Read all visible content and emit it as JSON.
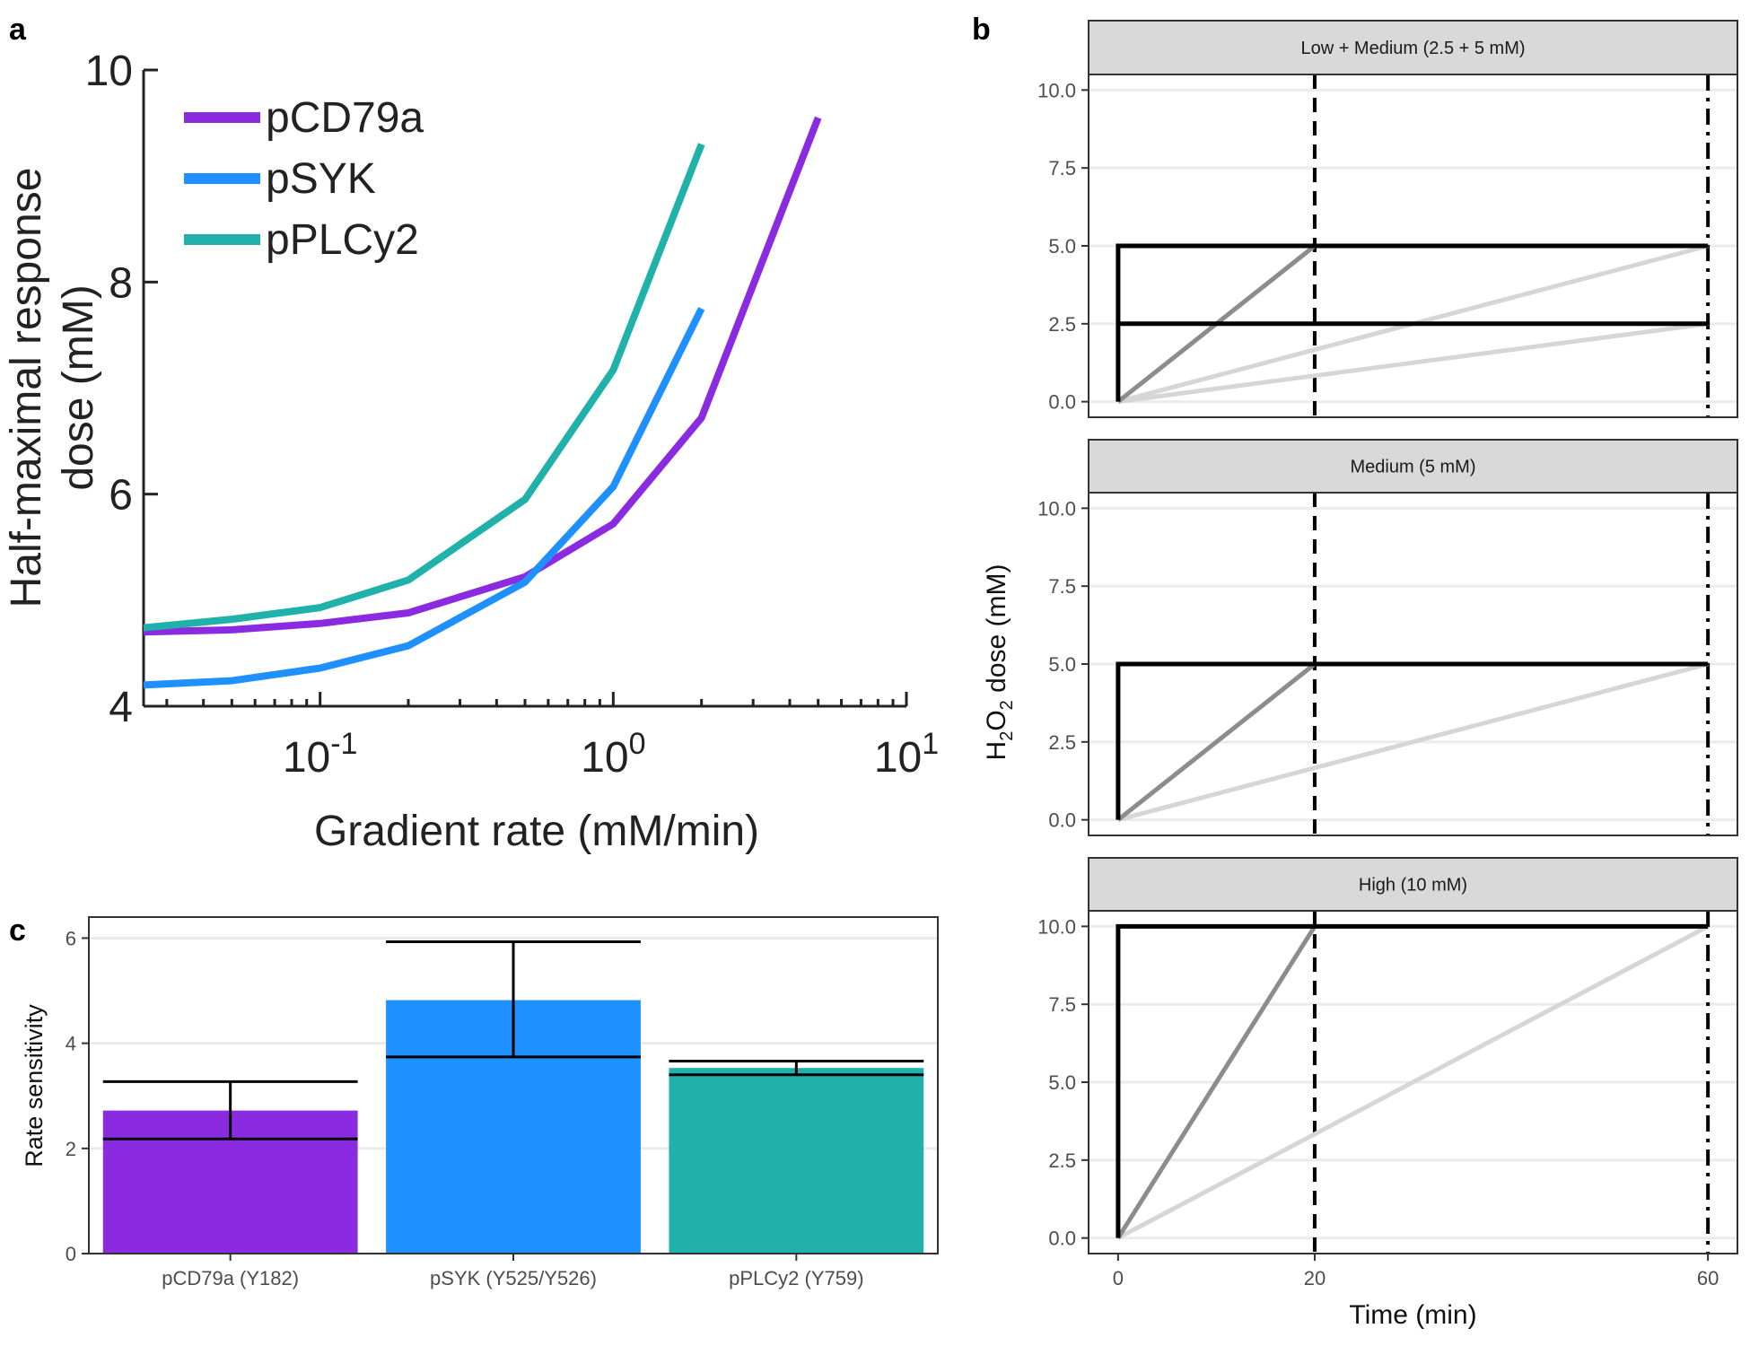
{
  "panel_labels": {
    "a": "a",
    "b": "b",
    "c": "c"
  },
  "colors": {
    "pCD79a": "#8a2be2",
    "pSYK": "#1e90ff",
    "pPLCy2": "#20b2aa",
    "step": "#000000",
    "ramp20": "#8c8c8c",
    "ramp60": "#d6d6d6",
    "strip": "#d9d9d9",
    "grid": "#ebebeb"
  },
  "chart_data": [
    {
      "type": "line",
      "panel": "a",
      "xscale": "log",
      "xlabel": "Gradient rate (mM/min)",
      "ylabel_lines": [
        "Half-maximal response",
        "dose (mM)"
      ],
      "xlim": [
        0.025,
        10
      ],
      "ylim": [
        4,
        10
      ],
      "yticks": [
        4,
        6,
        8,
        10
      ],
      "xtick_labels": [
        {
          "value": 0.1,
          "base": "10",
          "exp": "-1"
        },
        {
          "value": 1,
          "base": "10",
          "exp": "0"
        },
        {
          "value": 10,
          "base": "10",
          "exp": "1"
        }
      ],
      "legend_position": "top-left",
      "series": [
        {
          "name": "pCD79a",
          "color_key": "pCD79a",
          "x": [
            0.025,
            0.05,
            0.1,
            0.2,
            0.5,
            1,
            2,
            5
          ],
          "y": [
            4.7,
            4.72,
            4.78,
            4.88,
            5.22,
            5.72,
            6.72,
            9.55
          ]
        },
        {
          "name": "pSYK",
          "color_key": "pSYK",
          "x": [
            0.025,
            0.05,
            0.1,
            0.2,
            0.5,
            1,
            2
          ],
          "y": [
            4.2,
            4.24,
            4.36,
            4.57,
            5.17,
            6.07,
            7.75
          ]
        },
        {
          "name": "pPLCy2",
          "color_key": "pPLCy2",
          "x": [
            0.025,
            0.05,
            0.1,
            0.2,
            0.5,
            1,
            2
          ],
          "y": [
            4.74,
            4.82,
            4.93,
            5.19,
            5.95,
            7.17,
            9.3
          ]
        }
      ]
    },
    {
      "type": "line",
      "panel": "b",
      "xlabel": "Time (min)",
      "ylabel_parts": [
        "H",
        "2",
        "O",
        "2",
        " dose (mM)"
      ],
      "xlim": [
        -3,
        63
      ],
      "ylim": [
        -0.5,
        10.5
      ],
      "xticks": [
        0,
        20,
        60
      ],
      "yticks": [
        0,
        2.5,
        5,
        7.5,
        10
      ],
      "ytick_labels": [
        "0.0",
        "2.5",
        "5.0",
        "7.5",
        "10.0"
      ],
      "vlines": [
        {
          "x": 20,
          "style": "dashed"
        },
        {
          "x": 60,
          "style": "dotdash"
        }
      ],
      "facets": [
        {
          "strip": "Low + Medium (2.5 + 5 mM)",
          "series": [
            {
              "style": "ramp60",
              "x": [
                0,
                60
              ],
              "y": [
                0,
                2.5
              ]
            },
            {
              "style": "ramp60",
              "x": [
                0,
                60
              ],
              "y": [
                0,
                5
              ]
            },
            {
              "style": "ramp20",
              "x": [
                0,
                20
              ],
              "y": [
                0,
                5
              ]
            },
            {
              "style": "step",
              "x": [
                0,
                0,
                60
              ],
              "y": [
                0,
                5,
                5
              ]
            },
            {
              "style": "step",
              "x": [
                0,
                60
              ],
              "y": [
                2.5,
                2.5
              ]
            }
          ]
        },
        {
          "strip": "Medium (5 mM)",
          "series": [
            {
              "style": "ramp60",
              "x": [
                0,
                60
              ],
              "y": [
                0,
                5
              ]
            },
            {
              "style": "ramp20",
              "x": [
                0,
                20
              ],
              "y": [
                0,
                5
              ]
            },
            {
              "style": "step",
              "x": [
                0,
                0,
                60
              ],
              "y": [
                0,
                5,
                5
              ]
            }
          ]
        },
        {
          "strip": "High (10 mM)",
          "series": [
            {
              "style": "ramp60",
              "x": [
                0,
                60
              ],
              "y": [
                0,
                10
              ]
            },
            {
              "style": "ramp20",
              "x": [
                0,
                20
              ],
              "y": [
                0,
                10
              ]
            },
            {
              "style": "step",
              "x": [
                0,
                0,
                60
              ],
              "y": [
                0,
                10,
                10
              ]
            }
          ]
        }
      ]
    },
    {
      "type": "bar",
      "panel": "c",
      "ylabel": "Rate sensitivity",
      "ylim": [
        0,
        6.4
      ],
      "yticks": [
        0,
        2,
        4,
        6
      ],
      "categories": [
        "pCD79a (Y182)",
        "pSYK (Y525/Y526)",
        "pPLCy2 (Y759)"
      ],
      "color_keys": [
        "pCD79a",
        "pSYK",
        "pPLCy2"
      ],
      "values": [
        2.72,
        4.82,
        3.53
      ],
      "error_low": [
        2.18,
        3.74,
        3.4
      ],
      "error_high": [
        3.27,
        5.93,
        3.66
      ]
    }
  ]
}
